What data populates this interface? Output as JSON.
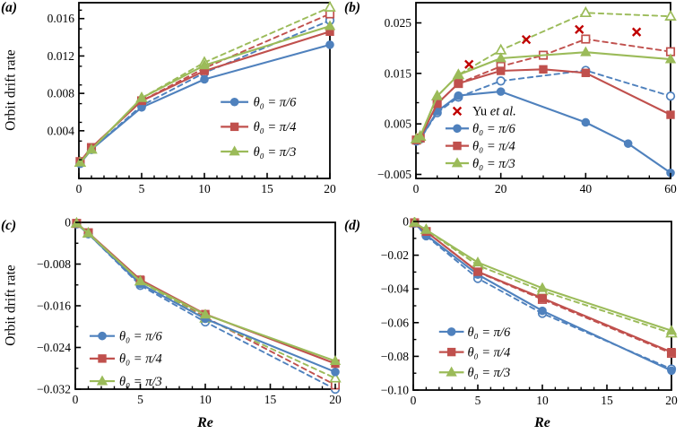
{
  "figure": {
    "background": "#ffffff"
  },
  "colors": {
    "blue": "#4F81BD",
    "red": "#C0504D",
    "green": "#9BBB59",
    "cross": "#C00000",
    "axis": "#000000"
  },
  "chart_data": [
    {
      "id": "a",
      "panel_label": "(a)",
      "type": "line",
      "ylabel": "Orbit drift rate",
      "xlabel": "",
      "xlim": [
        0,
        20
      ],
      "ylim": [
        -0.0011,
        0.0177
      ],
      "grid": false,
      "xticks": {
        "values": [
          0,
          5,
          10,
          15,
          20
        ],
        "labels": [
          "0",
          "5",
          "10",
          "15",
          "20"
        ]
      },
      "yticks": {
        "values": [
          0.016,
          0.012,
          0.008,
          0.004
        ],
        "labels": [
          "0.016",
          "0.012",
          "0.008",
          "0.004"
        ]
      },
      "minor": {
        "x": 1,
        "y": 0.002
      },
      "legend": {
        "position": "right-middle",
        "x0": 0.565,
        "x1": 0.675,
        "tx": 0.695,
        "y": 0.565,
        "dy": 0.141,
        "entries": [
          {
            "label": "θ₀ = π/6",
            "color": "blue",
            "marker": "circle"
          },
          {
            "label": "θ₀ = π/4",
            "color": "red",
            "marker": "square"
          },
          {
            "label": "θ₀ = π/3",
            "color": "green",
            "marker": "triangle"
          }
        ]
      },
      "series": [
        {
          "name": "theta-pi6-dashed",
          "color": "blue",
          "marker": "circle",
          "filled": false,
          "dashed": true,
          "x": [
            0.1,
            1,
            5,
            10,
            20
          ],
          "y": [
            0.0005,
            0.002,
            0.0067,
            0.0102,
            0.0158
          ]
        },
        {
          "name": "theta-pi4-dashed",
          "color": "red",
          "marker": "square",
          "filled": false,
          "dashed": true,
          "x": [
            0.1,
            1,
            5,
            10,
            20
          ],
          "y": [
            0.0007,
            0.0022,
            0.0072,
            0.0107,
            0.0165
          ]
        },
        {
          "name": "theta-pi3-dashed",
          "color": "green",
          "marker": "triangle",
          "filled": false,
          "dashed": true,
          "x": [
            0.1,
            1,
            5,
            10,
            20
          ],
          "y": [
            0.0006,
            0.002,
            0.0075,
            0.0113,
            0.0172
          ]
        },
        {
          "name": "theta-pi6-solid",
          "color": "blue",
          "marker": "circle",
          "filled": true,
          "dashed": false,
          "x": [
            0.1,
            1,
            5,
            10,
            20
          ],
          "y": [
            0.0005,
            0.002,
            0.0065,
            0.0095,
            0.0132
          ]
        },
        {
          "name": "theta-pi4-solid",
          "color": "red",
          "marker": "square",
          "filled": true,
          "dashed": false,
          "x": [
            0.1,
            1,
            5,
            10,
            20
          ],
          "y": [
            0.0007,
            0.0022,
            0.0072,
            0.0104,
            0.0146
          ]
        },
        {
          "name": "theta-pi3-solid",
          "color": "green",
          "marker": "triangle",
          "filled": true,
          "dashed": false,
          "x": [
            0.1,
            1,
            5,
            10,
            20
          ],
          "y": [
            0.0006,
            0.002,
            0.0075,
            0.011,
            0.0152
          ]
        }
      ]
    },
    {
      "id": "b",
      "panel_label": "(b)",
      "type": "line",
      "ylabel": "",
      "xlabel": "",
      "xlim": [
        0,
        60
      ],
      "ylim": [
        -0.0058,
        0.029
      ],
      "grid": false,
      "xticks": {
        "values": [
          0,
          20,
          40,
          60
        ],
        "labels": [
          "0",
          "20",
          "40",
          "60"
        ]
      },
      "yticks": {
        "values": [
          0.025,
          0.015,
          0.005,
          -0.005
        ],
        "labels": [
          "0.025",
          "0.015",
          "0.005",
          "−0.005"
        ]
      },
      "minor": {
        "x": 5,
        "y": 0.005
      },
      "legend": {
        "position": "center-bottom-left",
        "x0": 0.116,
        "x1": 0.208,
        "tx": 0.222,
        "y": 0.617,
        "dy": 0.0987,
        "entries": [
          {
            "label": "Yu et al.",
            "color": "cross",
            "marker": "cross",
            "line": false
          },
          {
            "label": "θ₀ = π/6",
            "color": "blue",
            "marker": "circle"
          },
          {
            "label": "θ₀ = π/4",
            "color": "red",
            "marker": "square"
          },
          {
            "label": "θ₀ = π/3",
            "color": "green",
            "marker": "triangle"
          }
        ]
      },
      "series": [
        {
          "name": "theta-pi6-dashed",
          "color": "blue",
          "marker": "circle",
          "filled": false,
          "dashed": true,
          "x": [
            0.1,
            1,
            5,
            10,
            20,
            40,
            60
          ],
          "y": [
            0.0016,
            0.002,
            0.0072,
            0.0103,
            0.0135,
            0.0156,
            0.0105
          ]
        },
        {
          "name": "theta-pi4-dashed",
          "color": "red",
          "marker": "square",
          "filled": false,
          "dashed": true,
          "x": [
            0.1,
            1,
            5,
            10,
            20,
            30,
            40,
            60
          ],
          "y": [
            0.0018,
            0.0022,
            0.009,
            0.013,
            0.0164,
            0.0186,
            0.0218,
            0.0193
          ]
        },
        {
          "name": "theta-pi3-dashed",
          "color": "green",
          "marker": "triangle",
          "filled": false,
          "dashed": true,
          "x": [
            0.1,
            1,
            5,
            10,
            20,
            40,
            60
          ],
          "y": [
            0.002,
            0.0025,
            0.0105,
            0.0147,
            0.0196,
            0.027,
            0.0263
          ]
        },
        {
          "name": "theta-pi6-solid",
          "color": "blue",
          "marker": "circle",
          "filled": true,
          "dashed": false,
          "x": [
            0.1,
            1,
            5,
            10,
            20,
            40,
            50,
            60
          ],
          "y": [
            0.0016,
            0.002,
            0.0075,
            0.0106,
            0.0114,
            0.0053,
            0.0011,
            -0.0047
          ]
        },
        {
          "name": "theta-pi4-solid",
          "color": "red",
          "marker": "square",
          "filled": true,
          "dashed": false,
          "x": [
            0.1,
            1,
            5,
            10,
            20,
            30,
            40,
            60
          ],
          "y": [
            0.0018,
            0.0022,
            0.009,
            0.013,
            0.0155,
            0.0158,
            0.0151,
            0.0068
          ]
        },
        {
          "name": "theta-pi3-solid",
          "color": "green",
          "marker": "triangle",
          "filled": true,
          "dashed": false,
          "x": [
            0.1,
            1,
            5,
            10,
            20,
            40,
            60
          ],
          "y": [
            0.002,
            0.0025,
            0.0105,
            0.0147,
            0.018,
            0.0192,
            0.0178
          ]
        },
        {
          "name": "yu-et-al-crosses",
          "color": "cross",
          "marker": "cross",
          "filled": true,
          "dashed": false,
          "x": [
            12.5,
            26,
            38.5,
            52
          ],
          "y": [
            0.0168,
            0.0217,
            0.0237,
            0.0232
          ]
        }
      ]
    },
    {
      "id": "c",
      "panel_label": "(c)",
      "type": "line",
      "ylabel": "Orbit drift rate",
      "xlabel": "Re",
      "xlim": [
        0,
        20
      ],
      "ylim": [
        -0.032,
        0
      ],
      "grid": false,
      "xticks": {
        "values": [
          0,
          5,
          10,
          15,
          20
        ],
        "labels": [
          "0",
          "5",
          "10",
          "15",
          "20"
        ]
      },
      "yticks": {
        "values": [
          0,
          -0.008,
          -0.016,
          -0.024,
          -0.032
        ],
        "labels": [
          "0",
          "−0.008",
          "−0.016",
          "−0.024",
          "−0.032"
        ]
      },
      "minor": {
        "x": 1,
        "y": 0.004
      },
      "legend": {
        "position": "bottom-left",
        "x0": 0.055,
        "x1": 0.152,
        "tx": 0.169,
        "y": 0.681,
        "dy": 0.1355,
        "entries": [
          {
            "label": "θ₀ = π/6",
            "color": "blue",
            "marker": "circle"
          },
          {
            "label": "θ₀ = π/4",
            "color": "red",
            "marker": "square"
          },
          {
            "label": "θ₀ = π/3",
            "color": "green",
            "marker": "triangle"
          }
        ]
      },
      "series": [
        {
          "name": "theta-pi6-dashed",
          "color": "blue",
          "marker": "circle",
          "filled": false,
          "dashed": true,
          "x": [
            0.1,
            1,
            5,
            10,
            20
          ],
          "y": [
            -0.0003,
            -0.0022,
            -0.0121,
            -0.0191,
            -0.032
          ]
        },
        {
          "name": "theta-pi4-dashed",
          "color": "red",
          "marker": "square",
          "filled": false,
          "dashed": true,
          "x": [
            0.1,
            1,
            5,
            10,
            20
          ],
          "y": [
            -0.0002,
            -0.002,
            -0.0112,
            -0.0182,
            -0.0312
          ]
        },
        {
          "name": "theta-pi3-dashed",
          "color": "green",
          "marker": "triangle",
          "filled": false,
          "dashed": true,
          "x": [
            0.1,
            1,
            5,
            10,
            20
          ],
          "y": [
            -0.0002,
            -0.0021,
            -0.0113,
            -0.0184,
            -0.0299
          ]
        },
        {
          "name": "theta-pi6-solid",
          "color": "blue",
          "marker": "circle",
          "filled": true,
          "dashed": false,
          "x": [
            0.1,
            1,
            5,
            10,
            20
          ],
          "y": [
            -0.0003,
            -0.0022,
            -0.0118,
            -0.0185,
            -0.0287
          ]
        },
        {
          "name": "theta-pi4-solid",
          "color": "red",
          "marker": "square",
          "filled": true,
          "dashed": false,
          "x": [
            0.1,
            1,
            5,
            10,
            20
          ],
          "y": [
            -0.0002,
            -0.002,
            -0.011,
            -0.0176,
            -0.0271
          ]
        },
        {
          "name": "theta-pi3-solid",
          "color": "green",
          "marker": "triangle",
          "filled": true,
          "dashed": false,
          "x": [
            0.1,
            1,
            5,
            10,
            20
          ],
          "y": [
            -0.0002,
            -0.0021,
            -0.0113,
            -0.0177,
            -0.0266
          ]
        }
      ]
    },
    {
      "id": "d",
      "panel_label": "(d)",
      "type": "line",
      "ylabel": "",
      "xlabel": "Re",
      "xlim": [
        0,
        20
      ],
      "ylim": [
        -0.1,
        0
      ],
      "grid": false,
      "xticks": {
        "values": [
          0,
          5,
          10,
          15,
          20
        ],
        "labels": [
          "0",
          "5",
          "10",
          "15",
          "20"
        ]
      },
      "yticks": {
        "values": [
          0,
          -0.02,
          -0.04,
          -0.06,
          -0.08,
          -0.1
        ],
        "labels": [
          "0",
          "−0.02",
          "−0.04",
          "−0.06",
          "−0.08",
          "−0.10"
        ]
      },
      "minor": {
        "x": 1,
        "y": 0.01
      },
      "legend": {
        "position": "bottom-left",
        "x0": 0.1,
        "x1": 0.196,
        "tx": 0.21,
        "y": 0.654,
        "dy": 0.1205,
        "entries": [
          {
            "label": "θ₀ = π/6",
            "color": "blue",
            "marker": "circle"
          },
          {
            "label": "θ₀ = π/4",
            "color": "red",
            "marker": "square"
          },
          {
            "label": "θ₀ = π/3",
            "color": "green",
            "marker": "triangle"
          }
        ]
      },
      "series": [
        {
          "name": "theta-pi6-dashed",
          "color": "blue",
          "marker": "circle",
          "filled": false,
          "dashed": true,
          "x": [
            0.1,
            1,
            5,
            10,
            20
          ],
          "y": [
            -0.001,
            -0.0085,
            -0.0338,
            -0.0545,
            -0.0875
          ]
        },
        {
          "name": "theta-pi4-dashed",
          "color": "red",
          "marker": "square",
          "filled": false,
          "dashed": true,
          "x": [
            0.1,
            1,
            5,
            10,
            20
          ],
          "y": [
            -0.0008,
            -0.006,
            -0.03,
            -0.0462,
            -0.0782
          ]
        },
        {
          "name": "theta-pi3-dashed",
          "color": "green",
          "marker": "triangle",
          "filled": false,
          "dashed": true,
          "x": [
            0.1,
            1,
            5,
            10,
            20
          ],
          "y": [
            -0.0007,
            -0.005,
            -0.026,
            -0.0412,
            -0.0663
          ]
        },
        {
          "name": "theta-pi6-solid",
          "color": "blue",
          "marker": "circle",
          "filled": true,
          "dashed": false,
          "x": [
            0.1,
            1,
            5,
            10,
            20
          ],
          "y": [
            -0.001,
            -0.008,
            -0.0315,
            -0.053,
            -0.0885
          ]
        },
        {
          "name": "theta-pi4-solid",
          "color": "red",
          "marker": "square",
          "filled": true,
          "dashed": false,
          "x": [
            0.1,
            1,
            5,
            10,
            20
          ],
          "y": [
            -0.0008,
            -0.006,
            -0.0298,
            -0.0455,
            -0.0775
          ]
        },
        {
          "name": "theta-pi3-solid",
          "color": "green",
          "marker": "triangle",
          "filled": true,
          "dashed": false,
          "x": [
            0.1,
            1,
            5,
            10,
            20
          ],
          "y": [
            -0.0007,
            -0.005,
            -0.0243,
            -0.0395,
            -0.0648
          ]
        }
      ]
    }
  ]
}
